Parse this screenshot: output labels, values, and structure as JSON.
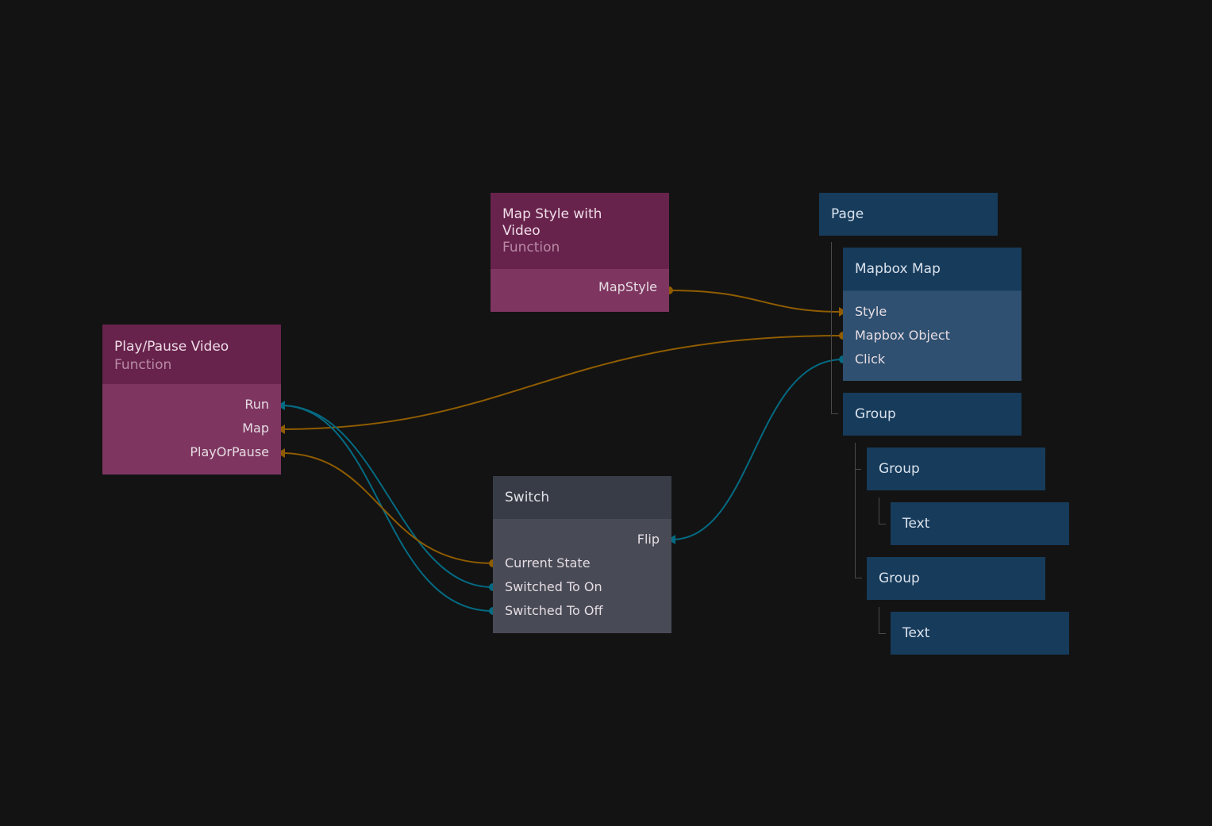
{
  "colors": {
    "background": "#131313",
    "function_header": "#67234c",
    "function_body": "#7e3660",
    "visual_header": "#173b5b",
    "visual_body": "#2f5070",
    "logic_header": "#383c46",
    "logic_body": "#484b56",
    "signal_wire": "#046a82",
    "data_wire": "#8f5c00"
  },
  "nodes": {
    "map_style": {
      "title": "Map Style with Video",
      "type": "Function",
      "outputs": [
        "MapStyle"
      ]
    },
    "play_pause": {
      "title": "Play/Pause Video",
      "type": "Function",
      "inputs": [
        "Run",
        "Map",
        "PlayOrPause"
      ]
    },
    "switch": {
      "title": "Switch",
      "inputs": [
        "Flip"
      ],
      "outputs": [
        "Current State",
        "Switched To On",
        "Switched To Off"
      ]
    },
    "page": {
      "title": "Page"
    },
    "mapbox_map": {
      "title": "Mapbox Map",
      "ports": [
        "Style",
        "Mapbox Object",
        "Click"
      ]
    },
    "group1": {
      "title": "Group"
    },
    "group2": {
      "title": "Group"
    },
    "text1": {
      "title": "Text"
    },
    "group3": {
      "title": "Group"
    },
    "text2": {
      "title": "Text"
    }
  }
}
